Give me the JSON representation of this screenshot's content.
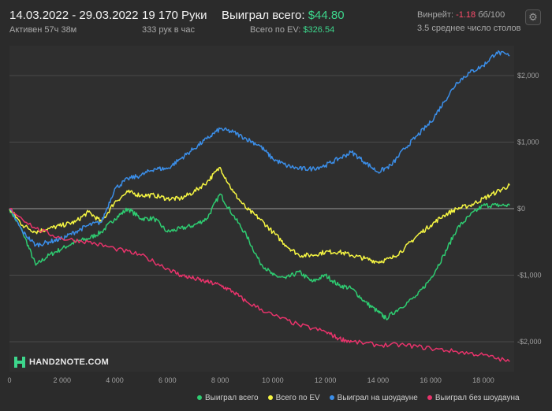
{
  "header": {
    "date_range": "14.03.2022 - 29.03.2022",
    "active_time": "Активен 57ч 38м",
    "hands": "19 170 Руки",
    "hands_per_hour": "333 рук в час",
    "won_total_label": "Выиграл всего:",
    "won_total_value": "$44.80",
    "ev_total_label": "Всего по EV:",
    "ev_total_value": "$326.54",
    "winrate_label": "Винрейт:",
    "winrate_value": "-1.18",
    "winrate_unit": "бб/100",
    "avg_tables": "3.5 среднее число столов",
    "settings_icon": "gear-icon"
  },
  "logo": {
    "text": "HAND2NOTE.COM"
  },
  "chart_data": {
    "type": "line",
    "xlim": [
      0,
      19170
    ],
    "ylim": [
      -2450,
      2450
    ],
    "x_ticks": [
      0,
      2000,
      4000,
      6000,
      8000,
      10000,
      12000,
      14000,
      16000,
      18000
    ],
    "x_tick_labels": [
      "0",
      "2 000",
      "4 000",
      "6 000",
      "8 000",
      "10 000",
      "12 000",
      "14 000",
      "16 000",
      "18 000"
    ],
    "y_ticks": [
      2000,
      1000,
      0,
      -1000,
      -2000
    ],
    "y_tick_labels": [
      "$2,000",
      "$1,000",
      "$0",
      "-$1,000",
      "-$2,000"
    ],
    "grid": true,
    "legend_position": "bottom",
    "series": [
      {
        "name": "Выиграл всего",
        "color": "#2ecc71",
        "x": [
          0,
          500,
          1000,
          1500,
          2000,
          2500,
          3000,
          3500,
          4000,
          4500,
          5000,
          5500,
          6000,
          6500,
          7000,
          7500,
          8000,
          8500,
          9000,
          9500,
          10000,
          10500,
          11000,
          11500,
          12000,
          12500,
          13000,
          13500,
          14000,
          14300,
          14800,
          15500,
          16000,
          16500,
          17000,
          17500,
          18000,
          18500,
          19000
        ],
        "y": [
          0,
          -350,
          -850,
          -700,
          -600,
          -500,
          -450,
          -350,
          -150,
          0,
          -150,
          -150,
          -350,
          -300,
          -250,
          -150,
          220,
          -100,
          -400,
          -800,
          -1000,
          -1050,
          -950,
          -1100,
          -1000,
          -1150,
          -1200,
          -1400,
          -1550,
          -1650,
          -1500,
          -1300,
          -1050,
          -700,
          -300,
          -100,
          50,
          50,
          50
        ]
      },
      {
        "name": "Всего по EV",
        "color": "#f5f542",
        "x": [
          0,
          500,
          1000,
          1500,
          2000,
          2500,
          3000,
          3500,
          4000,
          4500,
          5000,
          5500,
          6000,
          6500,
          7000,
          7500,
          8000,
          8500,
          9000,
          9500,
          10000,
          10500,
          11000,
          11500,
          12000,
          12500,
          13000,
          13500,
          14000,
          14500,
          15000,
          15500,
          16000,
          16500,
          17000,
          17500,
          18000,
          18500,
          19000
        ],
        "y": [
          0,
          -250,
          -350,
          -300,
          -250,
          -200,
          -50,
          -200,
          100,
          250,
          200,
          200,
          150,
          150,
          250,
          400,
          620,
          250,
          0,
          -150,
          -350,
          -550,
          -700,
          -700,
          -650,
          -650,
          -700,
          -750,
          -800,
          -750,
          -600,
          -400,
          -250,
          -100,
          0,
          50,
          150,
          250,
          350
        ]
      },
      {
        "name": "Выиграл на шоудауне",
        "color": "#3b8ee8",
        "x": [
          0,
          500,
          1000,
          1500,
          2000,
          2500,
          3000,
          3500,
          4000,
          4500,
          5000,
          5500,
          6000,
          6500,
          7000,
          7500,
          8000,
          8500,
          9000,
          9500,
          10000,
          10500,
          11000,
          11500,
          12000,
          12500,
          13000,
          13500,
          14000,
          14500,
          15000,
          15500,
          16000,
          16500,
          17000,
          17500,
          18000,
          18500,
          19000
        ],
        "y": [
          0,
          -350,
          -550,
          -500,
          -450,
          -350,
          -250,
          -200,
          300,
          450,
          500,
          600,
          600,
          750,
          900,
          1050,
          1200,
          1150,
          1050,
          950,
          750,
          650,
          600,
          600,
          650,
          750,
          850,
          700,
          550,
          650,
          900,
          1100,
          1300,
          1600,
          1900,
          2050,
          2150,
          2350,
          2300
        ]
      },
      {
        "name": "Выиграл без шоудауна",
        "color": "#e8336b",
        "x": [
          0,
          1000,
          2000,
          3000,
          4000,
          5000,
          6000,
          6500,
          7000,
          7500,
          8000,
          8500,
          9000,
          10000,
          11000,
          12000,
          12500,
          13000,
          14000,
          15000,
          16000,
          17000,
          18000,
          19000
        ],
        "y": [
          0,
          -300,
          -450,
          -500,
          -600,
          -700,
          -900,
          -1000,
          -1050,
          -1100,
          -1150,
          -1250,
          -1400,
          -1600,
          -1750,
          -1850,
          -1950,
          -2000,
          -2050,
          -2050,
          -2100,
          -2150,
          -2200,
          -2300
        ]
      }
    ]
  }
}
